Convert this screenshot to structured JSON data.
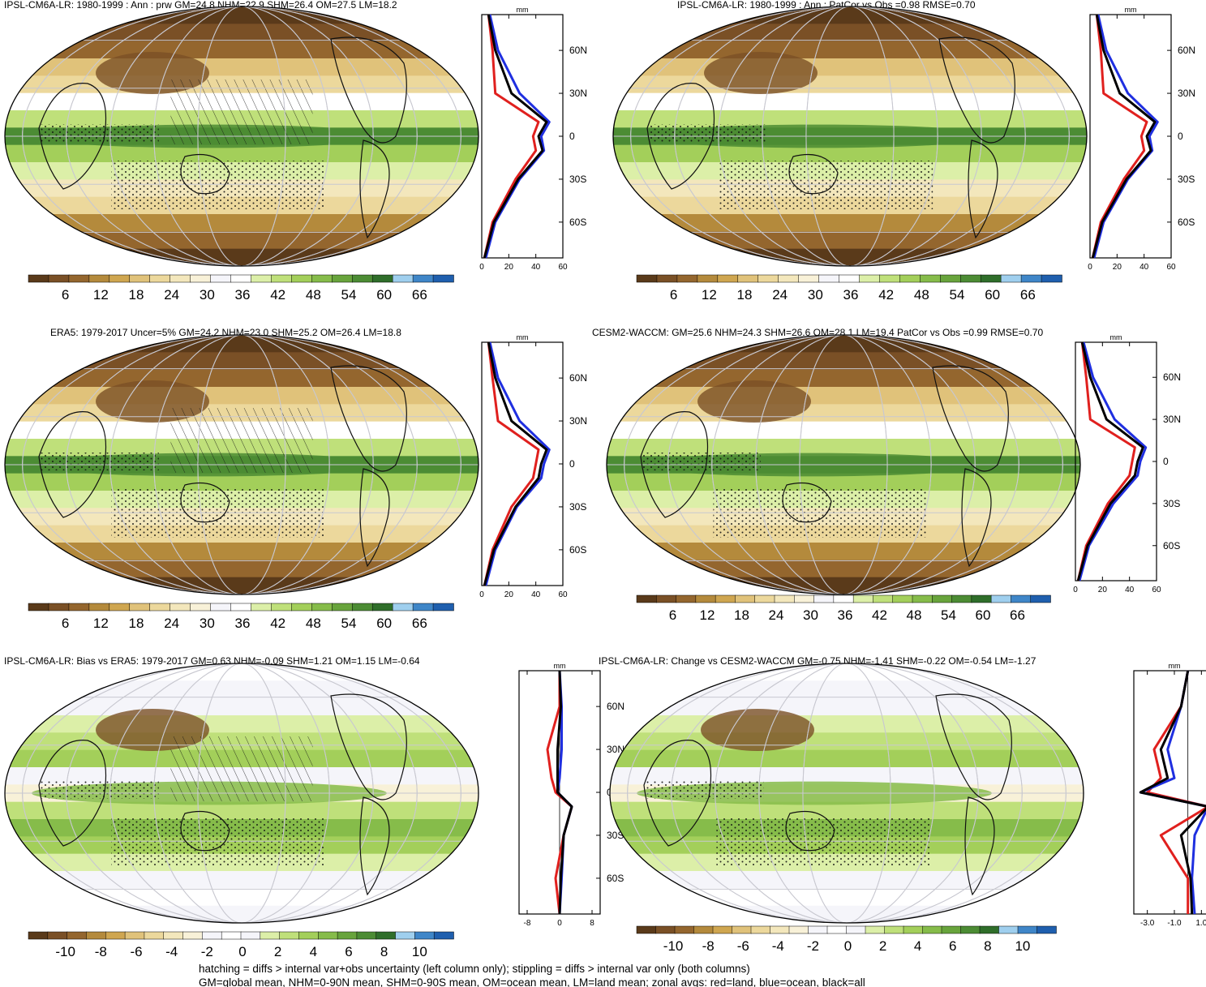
{
  "panels": [
    {
      "title": "IPSL-CM6A-LR: 1980-1999 : Ann : prw GM=24.8 NHM=22.9 SHM=26.4 OM=27.5 LM=18.2",
      "kind": "abs",
      "hatch": true,
      "ticks": [
        "6",
        "12",
        "18",
        "24",
        "30",
        "36",
        "42",
        "48",
        "54",
        "60",
        "66"
      ],
      "zonal_xticks": [
        "0",
        "20",
        "40",
        "60"
      ]
    },
    {
      "title": "IPSL-CM6A-LR: 1980-1999 : Ann : PatCor vs Obs =0.98 RMSE=0.70",
      "kind": "abs",
      "hatch": false,
      "ticks": [
        "6",
        "12",
        "18",
        "24",
        "30",
        "36",
        "42",
        "48",
        "54",
        "60",
        "66"
      ],
      "zonal_xticks": [
        "0",
        "20",
        "40",
        "60"
      ]
    },
    {
      "title": "ERA5: 1979-2017 Uncer=5% GM=24.2 NHM=23.0 SHM=25.2 OM=26.4 LM=18.8",
      "kind": "abs",
      "hatch": true,
      "ticks": [
        "6",
        "12",
        "18",
        "24",
        "30",
        "36",
        "42",
        "48",
        "54",
        "60",
        "66"
      ],
      "zonal_xticks": [
        "0",
        "20",
        "40",
        "60"
      ]
    },
    {
      "title": "CESM2-WACCM: GM=25.6 NHM=24.3 SHM=26.6 OM=28.1 LM=19.4 PatCor vs Obs =0.99 RMSE=0.70",
      "kind": "abs",
      "hatch": false,
      "ticks": [
        "6",
        "12",
        "18",
        "24",
        "30",
        "36",
        "42",
        "48",
        "54",
        "60",
        "66"
      ],
      "zonal_xticks": [
        "0",
        "20",
        "40",
        "60"
      ]
    },
    {
      "title": "IPSL-CM6A-LR: Bias vs ERA5: 1979-2017 GM=0.63 NHM=-0.09 SHM=1.21 OM=1.15 LM=-0.64",
      "kind": "diff",
      "hatch": true,
      "ticks": [
        "-10",
        "-8",
        "-6",
        "-4",
        "-2",
        "0",
        "2",
        "4",
        "6",
        "8",
        "10"
      ],
      "zonal_xticks": [
        "-8",
        "0",
        "8"
      ]
    },
    {
      "title": "IPSL-CM6A-LR: Change vs CESM2-WACCM GM=-0.75 NHM=-1.41 SHM=-0.22 OM=-0.54 LM=-1.27",
      "kind": "diff",
      "hatch": false,
      "ticks": [
        "-10",
        "-8",
        "-6",
        "-4",
        "-2",
        "0",
        "2",
        "4",
        "6",
        "8",
        "10"
      ],
      "zonal_xticks": [
        "-3.0",
        "-1.0",
        "1.0"
      ]
    }
  ],
  "lat_labels": [
    "60N",
    "30N",
    "0",
    "30S",
    "60S"
  ],
  "zonal_unit": "mm",
  "colors": {
    "abs_scale": [
      "#5a3a1a",
      "#7a5026",
      "#94662e",
      "#b48a3c",
      "#cfa650",
      "#e0c27a",
      "#ecd89c",
      "#f3e7bc",
      "#f8f1d8",
      "#f5f5fa",
      "#ffffff",
      "#dcefa8",
      "#bfe07a",
      "#a3cf5a",
      "#86bc4a",
      "#68a43c",
      "#4c8c34",
      "#2f6e2a",
      "#9fcfee",
      "#3f86c8",
      "#1f5fae"
    ],
    "diff_scale": [
      "#5a3a1a",
      "#7a5026",
      "#94662e",
      "#b48a3c",
      "#cfa650",
      "#e0c27a",
      "#ecd89c",
      "#f3e7bc",
      "#f8f1d8",
      "#f5f5fa",
      "#ffffff",
      "#f5f5fa",
      "#dcefa8",
      "#bfe07a",
      "#a3cf5a",
      "#86bc4a",
      "#68a43c",
      "#4c8c34",
      "#2f6e2a",
      "#9fcfee",
      "#3f86c8",
      "#1f5fae"
    ],
    "land_line": "#e0201e",
    "ocean_line": "#1f2fe0",
    "all_line": "#000000"
  },
  "footnote": [
    "hatching = diffs > internal var+obs uncertainty (left column only); stippling = diffs > internal var only (both columns)",
    "GM=global mean, NHM=0-90N mean, SHM=0-90S mean, OM=ocean mean, LM=land mean; zonal avgs: red=land, blue=ocean, black=all"
  ],
  "chart_data": [
    {
      "type": "heatmap",
      "title": "IPSL-CM6A-LR: 1980-1999 : Ann : prw GM=24.8 NHM=22.9 SHM=26.4 OM=27.5 LM=18.2",
      "colorbar_ticks": [
        6,
        12,
        18,
        24,
        30,
        36,
        42,
        48,
        54,
        60,
        66
      ],
      "zonal_profile": {
        "xlim": [
          0,
          60
        ],
        "lat": [
          85,
          60,
          30,
          10,
          0,
          -10,
          -30,
          -60,
          -85
        ],
        "land": [
          5,
          8,
          10,
          42,
          38,
          40,
          25,
          8,
          2
        ],
        "ocean": [
          6,
          12,
          28,
          50,
          44,
          46,
          28,
          10,
          3
        ],
        "all": [
          5,
          10,
          22,
          48,
          42,
          45,
          27,
          9,
          2
        ]
      }
    },
    {
      "type": "heatmap",
      "title": "IPSL-CM6A-LR: 1980-1999 : Ann : PatCor vs Obs =0.98 RMSE=0.70",
      "colorbar_ticks": [
        6,
        12,
        18,
        24,
        30,
        36,
        42,
        48,
        54,
        60,
        66
      ],
      "zonal_profile": {
        "xlim": [
          0,
          60
        ],
        "lat": [
          85,
          60,
          30,
          10,
          0,
          -10,
          -30,
          -60,
          -85
        ],
        "land": [
          5,
          8,
          10,
          42,
          38,
          40,
          25,
          8,
          2
        ],
        "ocean": [
          6,
          12,
          28,
          50,
          44,
          46,
          28,
          10,
          3
        ],
        "all": [
          5,
          10,
          22,
          48,
          42,
          45,
          27,
          9,
          2
        ]
      }
    },
    {
      "type": "heatmap",
      "title": "ERA5: 1979-2017 Uncer=5% GM=24.2 NHM=23.0 SHM=25.2 OM=26.4 LM=18.8",
      "colorbar_ticks": [
        6,
        12,
        18,
        24,
        30,
        36,
        42,
        48,
        54,
        60,
        66
      ],
      "zonal_profile": {
        "xlim": [
          0,
          60
        ],
        "lat": [
          85,
          60,
          30,
          10,
          0,
          -10,
          -30,
          -60,
          -85
        ],
        "land": [
          5,
          8,
          12,
          42,
          40,
          38,
          22,
          8,
          2
        ],
        "ocean": [
          6,
          12,
          28,
          50,
          46,
          44,
          26,
          10,
          3
        ],
        "all": [
          5,
          10,
          22,
          48,
          44,
          42,
          25,
          9,
          2
        ]
      }
    },
    {
      "type": "heatmap",
      "title": "CESM2-WACCM: GM=25.6 NHM=24.3 SHM=26.6 OM=28.1 LM=19.4 PatCor vs Obs =0.99 RMSE=0.70",
      "colorbar_ticks": [
        6,
        12,
        18,
        24,
        30,
        36,
        42,
        48,
        54,
        60,
        66
      ],
      "zonal_profile": {
        "xlim": [
          0,
          60
        ],
        "lat": [
          85,
          60,
          30,
          10,
          0,
          -10,
          -30,
          -60,
          -85
        ],
        "land": [
          5,
          8,
          11,
          44,
          42,
          40,
          24,
          8,
          2
        ],
        "ocean": [
          6,
          13,
          29,
          52,
          48,
          46,
          28,
          10,
          3
        ],
        "all": [
          5,
          11,
          23,
          50,
          46,
          44,
          26,
          9,
          2
        ]
      }
    },
    {
      "type": "heatmap",
      "title": "IPSL-CM6A-LR: Bias vs ERA5: 1979-2017 GM=0.63 NHM=-0.09 SHM=1.21 OM=1.15 LM=-0.64",
      "colorbar_ticks": [
        -10,
        -8,
        -6,
        -4,
        -2,
        0,
        2,
        4,
        6,
        8,
        10
      ],
      "zonal_profile": {
        "xlim": [
          -10,
          10
        ],
        "lat": [
          85,
          60,
          30,
          10,
          0,
          -10,
          -30,
          -60,
          -85
        ],
        "land": [
          0,
          0,
          -3,
          -2,
          -1,
          3,
          1,
          -1,
          0
        ],
        "ocean": [
          0,
          0.5,
          0.5,
          0,
          -0.5,
          3,
          1,
          0.5,
          0
        ],
        "all": [
          0,
          0.3,
          -0.5,
          -0.5,
          -0.5,
          3,
          1,
          0.3,
          0
        ]
      }
    },
    {
      "type": "heatmap",
      "title": "IPSL-CM6A-LR: Change vs CESM2-WACCM GM=-0.75 NHM=-1.41 SHM=-0.22 OM=-0.54 LM=-1.27",
      "colorbar_ticks": [
        -10,
        -8,
        -6,
        -4,
        -2,
        0,
        2,
        4,
        6,
        8,
        10
      ],
      "zonal_profile": {
        "xlim": [
          -4,
          2
        ],
        "lat": [
          85,
          60,
          30,
          10,
          0,
          -10,
          -30,
          -60,
          -85
        ],
        "land": [
          0,
          -0.5,
          -2.5,
          -2,
          -3,
          1.5,
          -2,
          0,
          0
        ],
        "ocean": [
          0,
          -0.5,
          -1.5,
          -1,
          -3.5,
          1.5,
          0.5,
          0.3,
          0.5
        ],
        "all": [
          0,
          -0.5,
          -2,
          -1.5,
          -3.5,
          1.5,
          -0.5,
          0.2,
          0.3
        ]
      }
    }
  ]
}
